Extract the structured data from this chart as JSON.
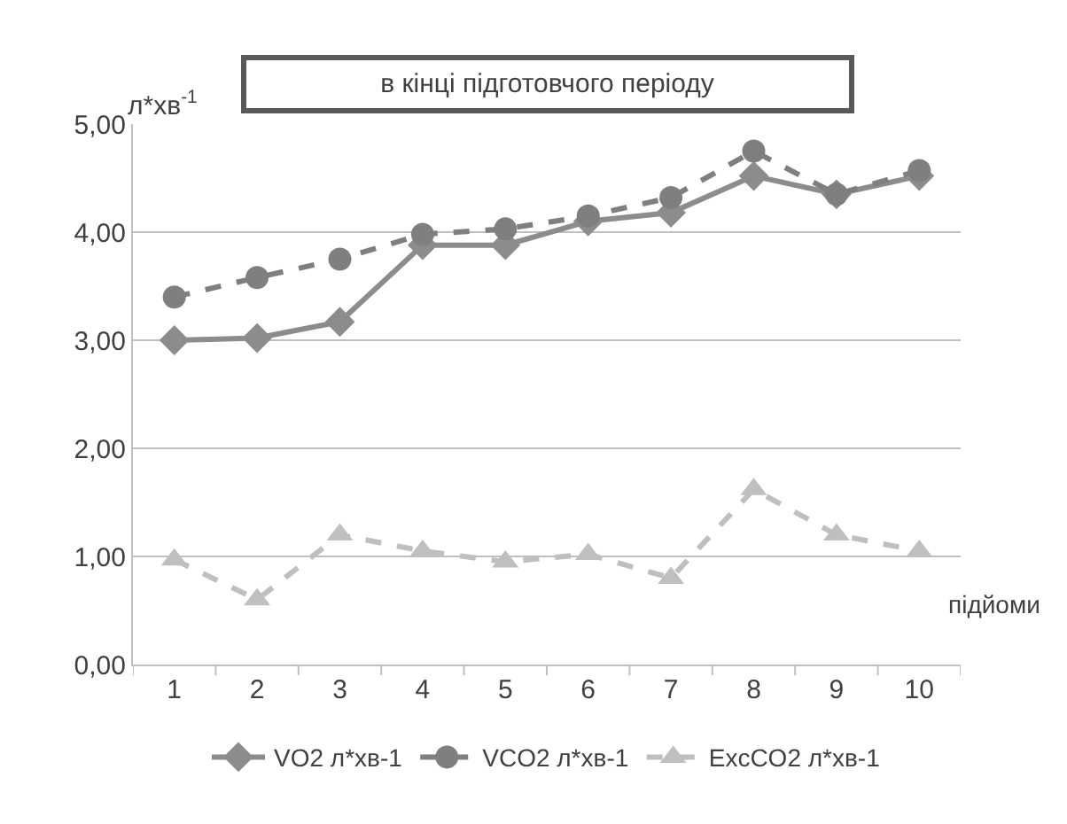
{
  "chart_data": {
    "type": "line",
    "title": "в кінці підготовчого періоду",
    "ylabel": "л*хв$^{-1}$",
    "xlabel": "підйоми",
    "categories": [
      "1",
      "2",
      "3",
      "4",
      "5",
      "6",
      "7",
      "8",
      "9",
      "10"
    ],
    "series": [
      {
        "name": "VO2 л*хв-1",
        "color": "#8c8c8c",
        "marker": "diamond",
        "line_style": "solid",
        "values": [
          3.0,
          3.02,
          3.17,
          3.88,
          3.88,
          4.1,
          4.18,
          4.52,
          4.35,
          4.52
        ]
      },
      {
        "name": "VCO2 л*хв-1",
        "color": "#7f7f7f",
        "marker": "circle",
        "line_style": "dashed",
        "values": [
          3.4,
          3.58,
          3.75,
          3.98,
          4.03,
          4.15,
          4.32,
          4.75,
          4.35,
          4.57
        ]
      },
      {
        "name": "ExcCO2 л*хв-1",
        "color": "#bfbfbf",
        "marker": "triangle",
        "line_style": "dashed",
        "values": [
          0.97,
          0.6,
          1.2,
          1.05,
          0.95,
          1.02,
          0.8,
          1.62,
          1.2,
          1.05
        ]
      }
    ],
    "ylim": [
      0,
      5
    ],
    "yticks": [
      {
        "value": 0,
        "label": "0,00"
      },
      {
        "value": 1,
        "label": "1,00"
      },
      {
        "value": 2,
        "label": "2,00"
      },
      {
        "value": 3,
        "label": "3,00"
      },
      {
        "value": 4,
        "label": "4,00"
      },
      {
        "value": 5,
        "label": "5,00"
      }
    ],
    "grid": "y",
    "legend": "bottom"
  }
}
